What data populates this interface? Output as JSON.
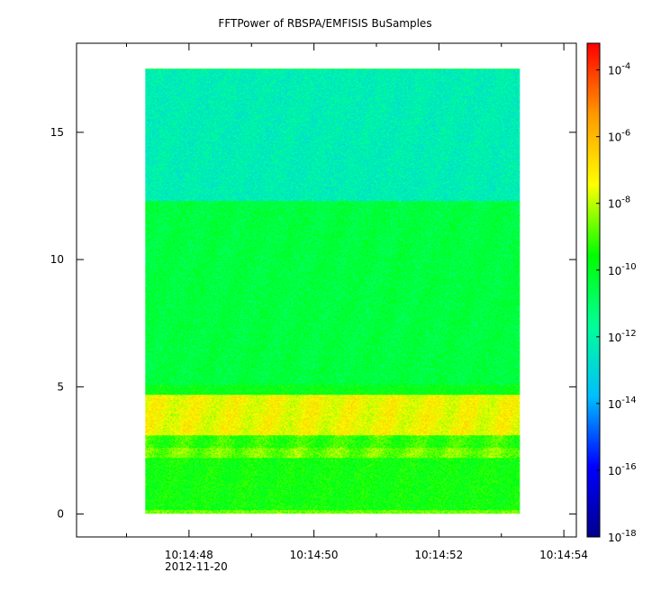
{
  "chart_data": {
    "type": "heatmap",
    "title": "FFTPower of RBSPA/EMFISIS  BuSamples",
    "xlabel": "",
    "ylabel": "",
    "x_ticks": [
      {
        "label": "10:14:48",
        "sublabel": "2012-11-20",
        "value": 48
      },
      {
        "label": "10:14:50",
        "value": 50
      },
      {
        "label": "10:14:52",
        "value": 52
      },
      {
        "label": "10:14:54",
        "value": 54
      }
    ],
    "x_minor_ticks": [
      47,
      49,
      51,
      53
    ],
    "xlim": [
      46.2,
      54.2
    ],
    "ylim": [
      -0.9,
      18.5
    ],
    "y_ticks": [
      {
        "label": "0",
        "value": 0
      },
      {
        "label": "5",
        "value": 5
      },
      {
        "label": "10",
        "value": 10
      },
      {
        "label": "15",
        "value": 15
      }
    ],
    "data_extent": {
      "x": [
        47.3,
        53.3
      ],
      "y": [
        0,
        17.5
      ]
    },
    "spectral_bands": [
      {
        "y": [
          0,
          0.15
        ],
        "log10_power": -8.6
      },
      {
        "y": [
          0.15,
          2.2
        ],
        "log10_power": -9.6
      },
      {
        "y": [
          2.2,
          2.6
        ],
        "log10_power": -8.6
      },
      {
        "y": [
          2.6,
          3.1
        ],
        "log10_power": -9.2
      },
      {
        "y": [
          3.1,
          4.7
        ],
        "log10_power": -7.4
      },
      {
        "y": [
          4.7,
          5.1
        ],
        "log10_power": -9.8
      },
      {
        "y": [
          5.1,
          12.3
        ],
        "log10_power": -10.4
      },
      {
        "y": [
          12.3,
          17.5
        ],
        "log10_power": -12.2
      }
    ],
    "colorbar": {
      "scale": "log",
      "range_log10": [
        -18,
        -3.2
      ],
      "ticks": [
        {
          "base": "10",
          "exp": "-4",
          "value": -4
        },
        {
          "base": "10",
          "exp": "-6",
          "value": -6
        },
        {
          "base": "10",
          "exp": "-8",
          "value": -8
        },
        {
          "base": "10",
          "exp": "-10",
          "value": -10
        },
        {
          "base": "10",
          "exp": "-12",
          "value": -12
        },
        {
          "base": "10",
          "exp": "-14",
          "value": -14
        },
        {
          "base": "10",
          "exp": "-16",
          "value": -16
        },
        {
          "base": "10",
          "exp": "-18",
          "value": -18
        }
      ],
      "colormap": [
        "#00008b",
        "#0000ff",
        "#00bfff",
        "#00ff99",
        "#00ff00",
        "#ffff00",
        "#ff9900",
        "#ff0000"
      ]
    }
  }
}
